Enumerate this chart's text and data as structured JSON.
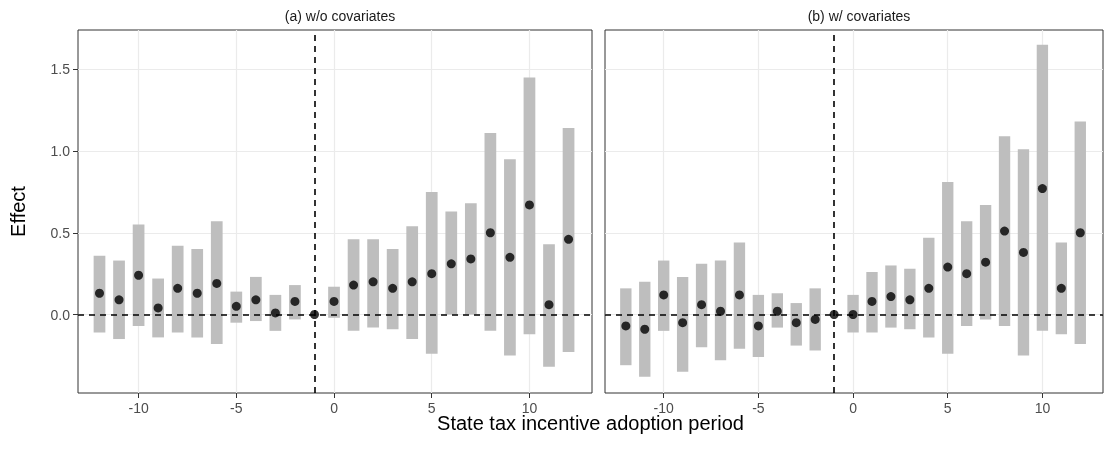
{
  "chart_data": [
    {
      "type": "scatter",
      "title": "(a) w/o covariates",
      "xlabel": "State tax incentive adoption period",
      "ylabel": "Effect",
      "series": [
        {
          "color": "#000000",
          "x": [
            -12,
            -11,
            -10,
            -9,
            -8,
            -7,
            -6,
            -5,
            -4,
            -3,
            -2,
            -1,
            0,
            1,
            2,
            3,
            4,
            5,
            6,
            7,
            8,
            9,
            10,
            11,
            12
          ],
          "values": [
            0.13,
            0.09,
            0.24,
            0.04,
            0.16,
            0.13,
            0.19,
            0.05,
            0.09,
            0.01,
            0.08,
            0,
            0.08,
            0.18,
            0.2,
            0.16,
            0.2,
            0.25,
            0.31,
            0.34,
            0.5,
            0.35,
            0.67,
            0.06,
            0.46
          ],
          "errors": [
            [
              -0.11,
              0.36
            ],
            [
              -0.15,
              0.33
            ],
            [
              -0.07,
              0.55
            ],
            [
              -0.14,
              0.22
            ],
            [
              -0.11,
              0.42
            ],
            [
              -0.14,
              0.4
            ],
            [
              -0.18,
              0.57
            ],
            [
              -0.05,
              0.14
            ],
            [
              -0.04,
              0.23
            ],
            [
              -0.1,
              0.12
            ],
            [
              -0.03,
              0.18
            ],
            null,
            [
              -0.02,
              0.17
            ],
            [
              -0.1,
              0.46
            ],
            [
              -0.08,
              0.46
            ],
            [
              -0.09,
              0.4
            ],
            [
              -0.15,
              0.54
            ],
            [
              -0.24,
              0.75
            ],
            [
              0.0,
              0.63
            ],
            [
              0.0,
              0.68
            ],
            [
              -0.1,
              1.11
            ],
            [
              -0.25,
              0.95
            ],
            [
              -0.12,
              1.45
            ],
            [
              -0.32,
              0.43
            ],
            [
              -0.23,
              1.14
            ]
          ]
        }
      ],
      "xlim": [
        -13.1,
        13.2
      ],
      "xticks": [
        -10,
        -5,
        0,
        5,
        10
      ],
      "ylim": [
        -0.48,
        1.74
      ],
      "yticks": [
        {
          "value": 0,
          "label": "0.0"
        },
        {
          "value": 0.5,
          "label": "0.5"
        },
        {
          "value": 1,
          "label": "1.0"
        },
        {
          "value": 1.5,
          "label": "1.5"
        }
      ],
      "ref_lines": [
        {
          "axis": "x",
          "value": -1,
          "line_style": "dashed"
        },
        {
          "axis": "y",
          "value": 0,
          "line_style": "dashed"
        }
      ],
      "grid": true,
      "marker": "circle"
    },
    {
      "type": "scatter",
      "title": "(b) w/ covariates",
      "series": [
        {
          "color": "#000000",
          "x": [
            -12,
            -11,
            -10,
            -9,
            -8,
            -7,
            -6,
            -5,
            -4,
            -3,
            -2,
            -1,
            0,
            1,
            2,
            3,
            4,
            5,
            6,
            7,
            8,
            9,
            10,
            11,
            12
          ],
          "values": [
            -0.07,
            -0.09,
            0.12,
            -0.05,
            0.06,
            0.02,
            0.12,
            -0.07,
            0.02,
            -0.05,
            -0.03,
            0,
            0.0,
            0.08,
            0.11,
            0.09,
            0.16,
            0.29,
            0.25,
            0.32,
            0.51,
            0.38,
            0.77,
            0.16,
            0.5
          ],
          "errors": [
            [
              -0.31,
              0.16
            ],
            [
              -0.38,
              0.2
            ],
            [
              -0.1,
              0.33
            ],
            [
              -0.35,
              0.23
            ],
            [
              -0.2,
              0.31
            ],
            [
              -0.28,
              0.33
            ],
            [
              -0.21,
              0.44
            ],
            [
              -0.26,
              0.12
            ],
            [
              -0.08,
              0.13
            ],
            [
              -0.19,
              0.07
            ],
            [
              -0.22,
              0.16
            ],
            null,
            [
              -0.11,
              0.12
            ],
            [
              -0.11,
              0.26
            ],
            [
              -0.08,
              0.3
            ],
            [
              -0.09,
              0.28
            ],
            [
              -0.14,
              0.47
            ],
            [
              -0.24,
              0.81
            ],
            [
              -0.07,
              0.57
            ],
            [
              -0.03,
              0.67
            ],
            [
              -0.07,
              1.09
            ],
            [
              -0.25,
              1.01
            ],
            [
              -0.1,
              1.65
            ],
            [
              -0.12,
              0.44
            ],
            [
              -0.18,
              1.18
            ]
          ]
        }
      ],
      "xlim": [
        -13.1,
        13.2
      ],
      "xticks": [
        -10,
        -5,
        0,
        5,
        10
      ],
      "ylim": [
        -0.48,
        1.74
      ],
      "yticks": [
        0,
        0.5,
        1,
        1.5
      ],
      "ref_lines": [
        {
          "axis": "x",
          "value": -1,
          "line_style": "dashed"
        },
        {
          "axis": "y",
          "value": 0,
          "line_style": "dashed"
        }
      ],
      "grid": true,
      "marker": "circle",
      "tick_labels": "x"
    }
  ]
}
